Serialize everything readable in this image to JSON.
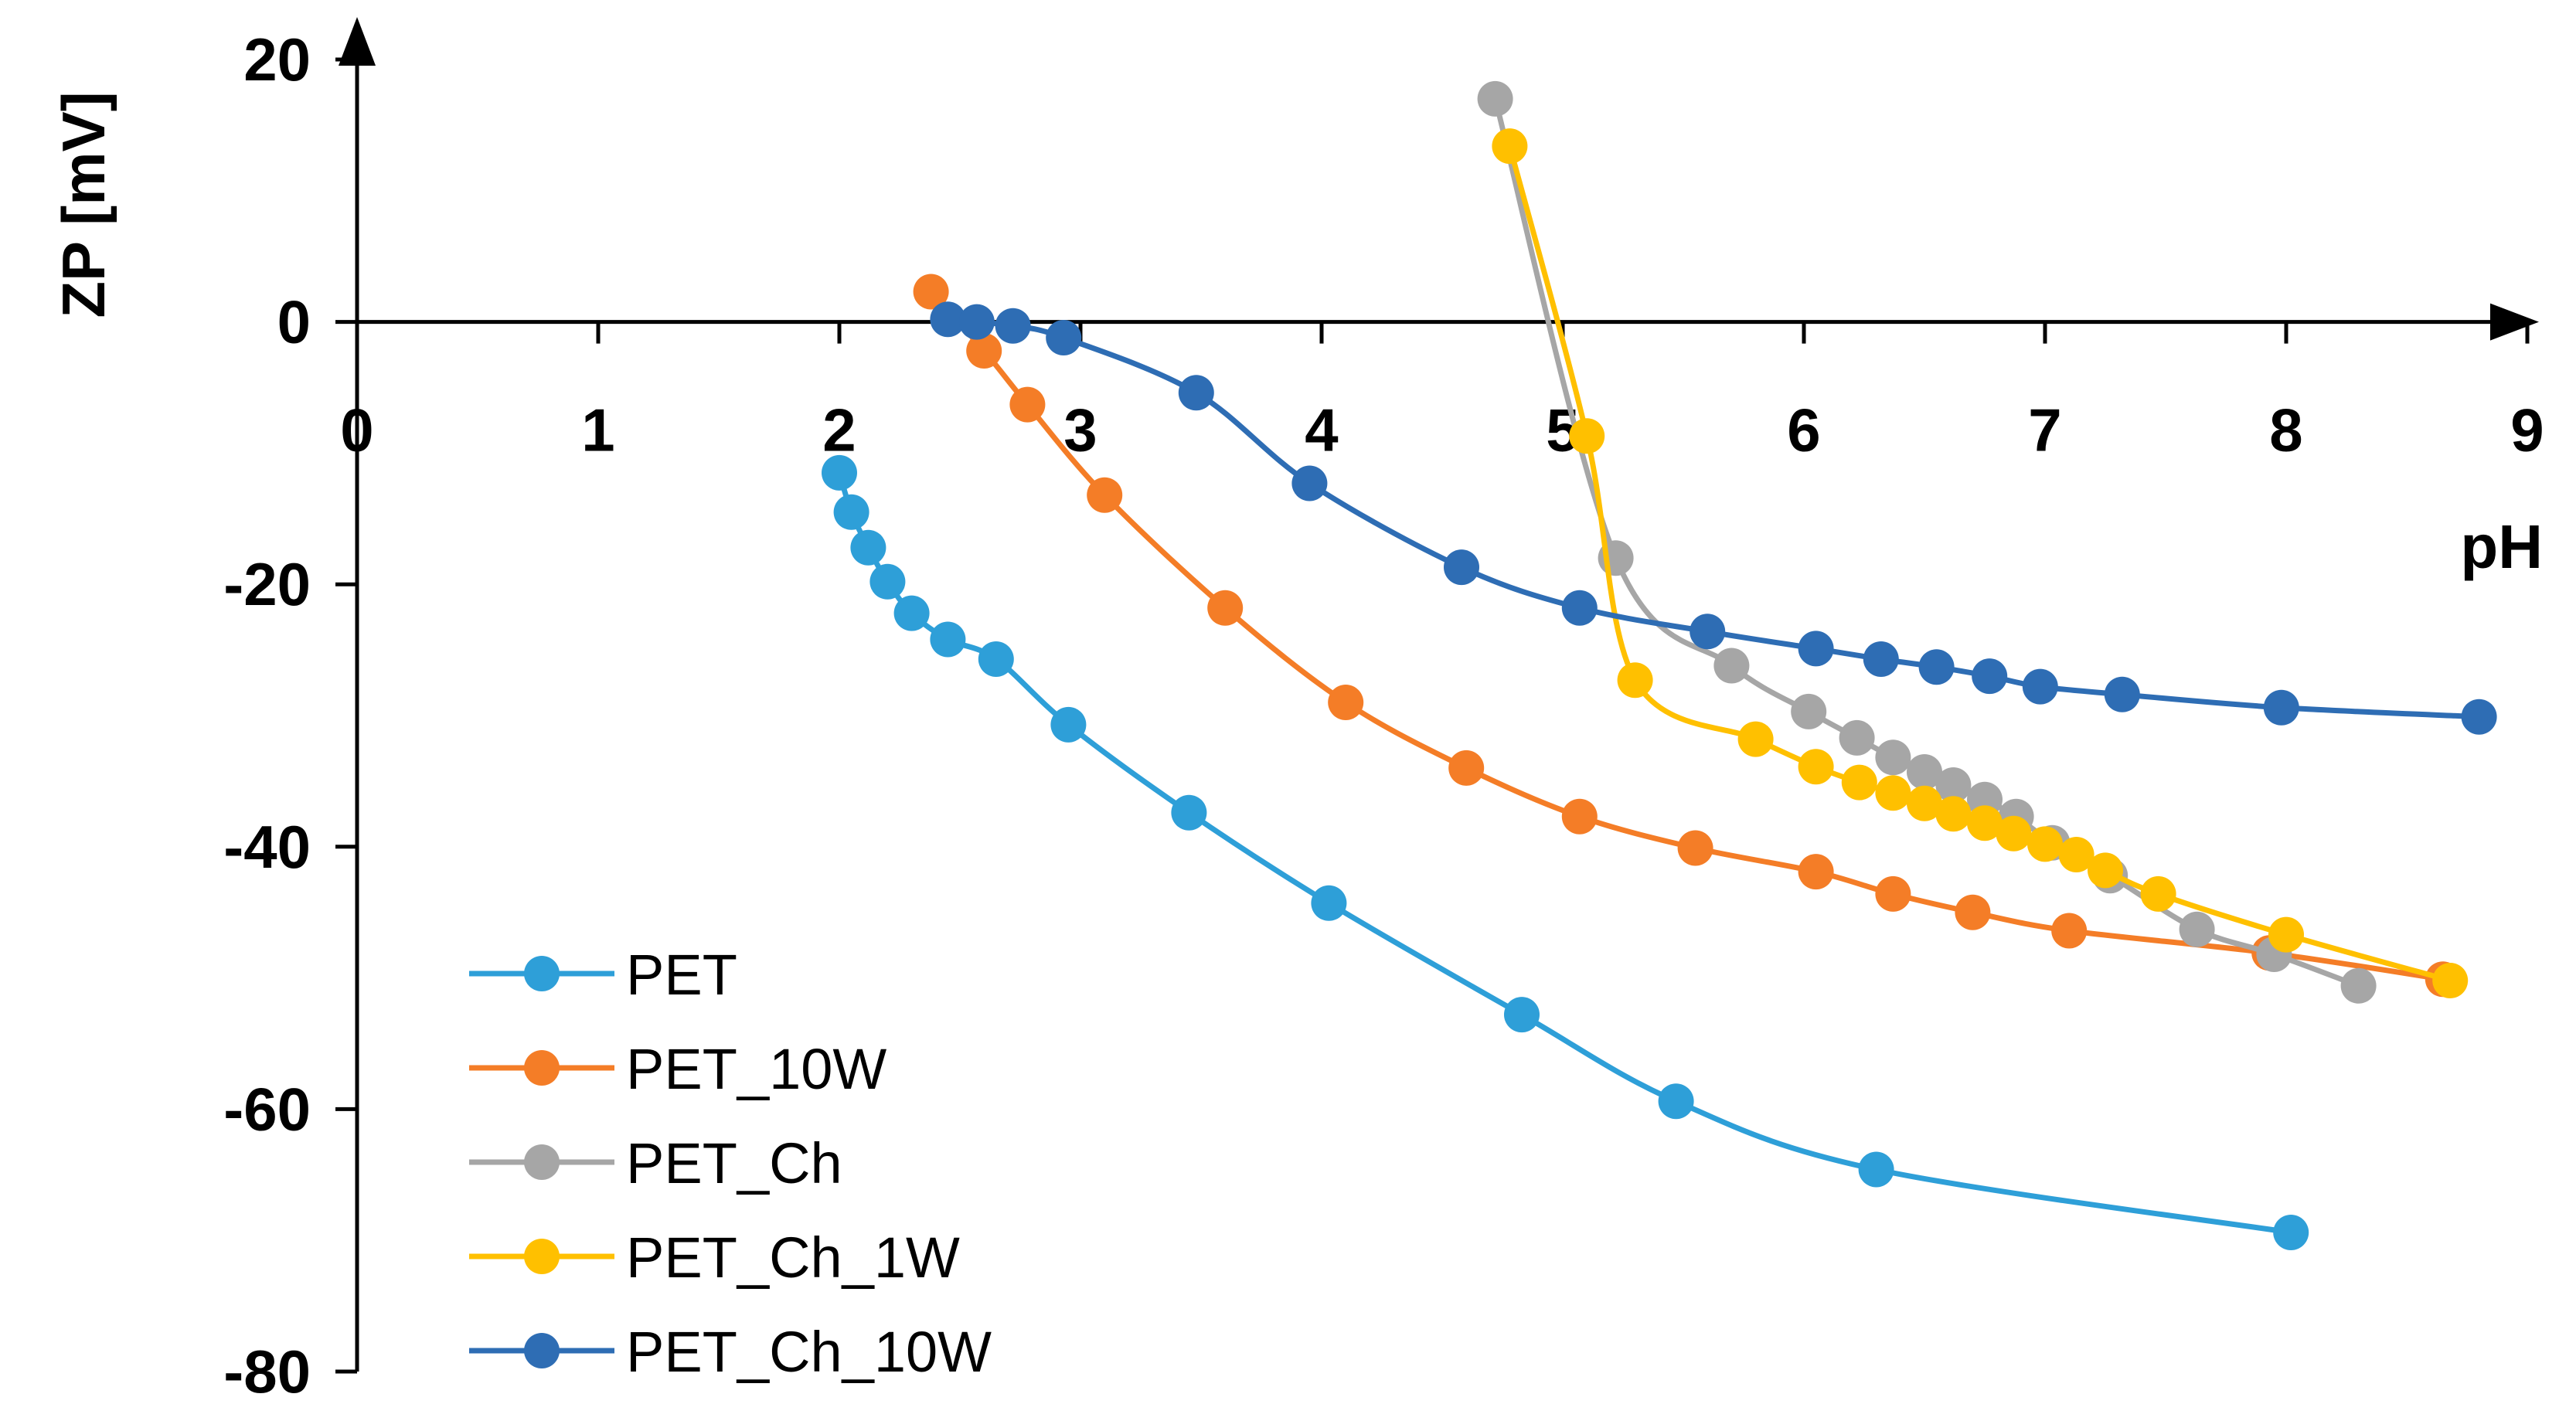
{
  "chart_data": {
    "type": "line",
    "title": "",
    "xlabel": "pH",
    "ylabel": "ZP [mV]",
    "xlim": [
      0,
      9
    ],
    "ylim": [
      -80,
      20
    ],
    "x_ticks": [
      0,
      1,
      2,
      3,
      4,
      5,
      6,
      7,
      8,
      9
    ],
    "y_ticks": [
      20,
      0,
      -20,
      -40,
      -60,
      -80
    ],
    "grid": false,
    "legend_position": "bottom-left",
    "series": [
      {
        "name": "PET",
        "color": "#2E9FD8",
        "x": [
          2.0,
          2.05,
          2.12,
          2.2,
          2.3,
          2.45,
          2.65,
          2.95,
          3.45,
          4.03,
          4.83,
          5.47,
          6.3,
          8.02
        ],
        "y": [
          -11.5,
          -14.5,
          -17.2,
          -19.8,
          -22.2,
          -24.2,
          -25.7,
          -30.7,
          -37.4,
          -44.3,
          -52.8,
          -59.4,
          -64.6,
          -69.4
        ]
      },
      {
        "name": "PET_10W",
        "color": "#F47D27",
        "x": [
          2.38,
          2.6,
          2.78,
          3.1,
          3.6,
          4.1,
          4.6,
          5.07,
          5.55,
          6.05,
          6.37,
          6.7,
          7.1,
          7.93,
          8.65
        ],
        "y": [
          2.3,
          -2.2,
          -6.3,
          -13.2,
          -21.8,
          -29.0,
          -34.0,
          -37.7,
          -40.1,
          -41.9,
          -43.6,
          -45.0,
          -46.4,
          -48.1,
          -50.1
        ]
      },
      {
        "name": "PET_Ch",
        "color": "#A6A6A6",
        "x": [
          4.72,
          5.22,
          5.7,
          6.02,
          6.22,
          6.37,
          6.5,
          6.62,
          6.75,
          6.88,
          7.03,
          7.27,
          7.63,
          7.95,
          8.3
        ],
        "y": [
          17.0,
          -18.0,
          -26.2,
          -29.7,
          -31.7,
          -33.2,
          -34.3,
          -35.3,
          -36.4,
          -37.7,
          -39.7,
          -42.2,
          -46.3,
          -48.2,
          -50.6
        ]
      },
      {
        "name": "PET_Ch_1W",
        "color": "#FFC000",
        "x": [
          4.78,
          5.1,
          5.3,
          5.8,
          6.05,
          6.23,
          6.37,
          6.5,
          6.62,
          6.75,
          6.87,
          7.0,
          7.13,
          7.25,
          7.47,
          8.0,
          8.68
        ],
        "y": [
          13.4,
          -8.7,
          -27.3,
          -31.8,
          -33.9,
          -35.1,
          -35.9,
          -36.7,
          -37.5,
          -38.2,
          -39.0,
          -39.8,
          -40.6,
          -41.8,
          -43.6,
          -46.7,
          -50.2
        ]
      },
      {
        "name": "PET_Ch_10W",
        "color": "#2E6DB4",
        "x": [
          2.45,
          2.57,
          2.72,
          2.93,
          3.48,
          3.95,
          4.58,
          5.07,
          5.6,
          6.05,
          6.32,
          6.55,
          6.77,
          6.98,
          7.32,
          7.98,
          8.8
        ],
        "y": [
          0.2,
          0.0,
          -0.3,
          -1.2,
          -5.4,
          -12.3,
          -18.7,
          -21.8,
          -23.6,
          -24.9,
          -25.7,
          -26.3,
          -27.0,
          -27.8,
          -28.4,
          -29.4,
          -30.1
        ]
      }
    ]
  }
}
